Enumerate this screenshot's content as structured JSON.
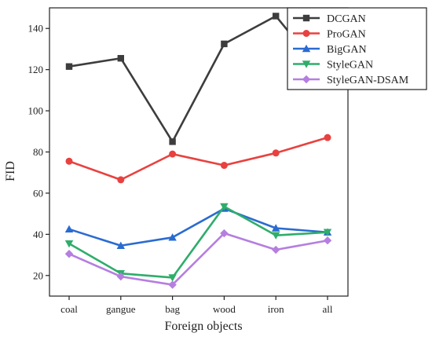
{
  "chart_data": {
    "type": "line",
    "title": "",
    "xlabel": "Foreign objects",
    "ylabel": "FID",
    "categories": [
      "coal",
      "gangue",
      "bag",
      "wood",
      "iron",
      "all"
    ],
    "ylim": [
      10,
      150
    ],
    "yticks": [
      20,
      40,
      60,
      80,
      100,
      120,
      140
    ],
    "grid": false,
    "legend": "top-right",
    "series": [
      {
        "name": "DCGAN",
        "color": "#3d3d3d",
        "marker": "square",
        "values": [
          121.5,
          125.5,
          85,
          132.5,
          146,
          115.5
        ]
      },
      {
        "name": "ProGAN",
        "color": "#e8413f",
        "marker": "circle",
        "values": [
          75.5,
          66.5,
          79,
          73.5,
          79.5,
          87
        ]
      },
      {
        "name": "BigGAN",
        "color": "#2a6bd1",
        "marker": "triangle-up",
        "values": [
          42.5,
          34.5,
          38.5,
          52.5,
          43,
          41
        ]
      },
      {
        "name": "StyleGAN",
        "color": "#2fad6b",
        "marker": "triangle-down",
        "values": [
          35.5,
          21,
          19,
          53.5,
          39.5,
          41
        ]
      },
      {
        "name": "StyleGAN-DSAM",
        "color": "#b57ee0",
        "marker": "diamond",
        "values": [
          30.5,
          19.5,
          15.5,
          40.5,
          32.5,
          37
        ]
      }
    ]
  }
}
